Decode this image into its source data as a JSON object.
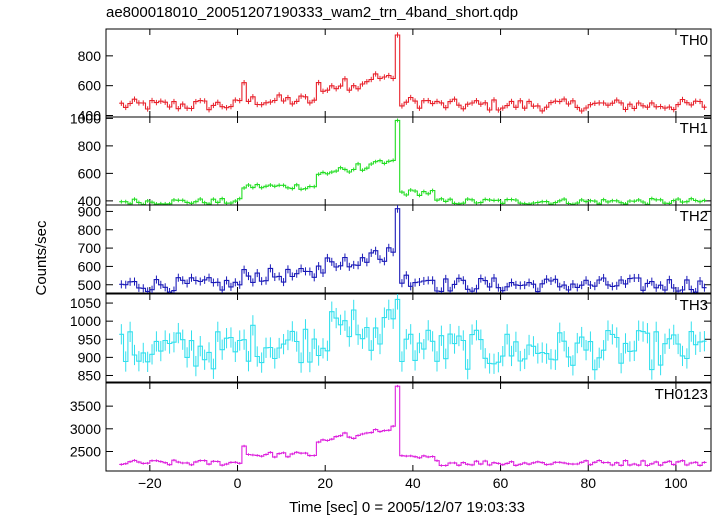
{
  "page_title": "ae800018010_20051207190333_wam2_trn_4band_short.qdp",
  "x_axis_label": "Time [sec] 0 = 2005/12/07 19:03:33",
  "y_axis_label": "Counts/sec",
  "chart_data": [
    {
      "type": "line",
      "name": "TH0",
      "color": "#e8212b",
      "xlim": [
        -30,
        108
      ],
      "ylim": [
        390,
        980
      ],
      "yticks": [
        400,
        600,
        800
      ],
      "yticklabels": [
        "400",
        "600",
        "800"
      ],
      "peaks": [
        [
          1.5,
          630
        ],
        [
          36.5,
          950
        ]
      ]
    },
    {
      "type": "line",
      "name": "TH1",
      "color": "#22dd22",
      "xlim": [
        -30,
        108
      ],
      "ylim": [
        370,
        1010
      ],
      "yticks": [
        400,
        600,
        800,
        1000
      ],
      "yticklabels": [
        "400",
        "600",
        "800",
        "1000"
      ],
      "peaks": [
        [
          1.5,
          510
        ],
        [
          36.5,
          990
        ]
      ]
    },
    {
      "type": "line",
      "name": "TH2",
      "color": "#1a1ab8",
      "xlim": [
        -30,
        108
      ],
      "ylim": [
        455,
        935
      ],
      "yticks": [
        500,
        600,
        700,
        800,
        900
      ],
      "yticklabels": [
        "500",
        "600",
        "700",
        "800",
        "900"
      ],
      "peaks": [
        [
          21.5,
          630
        ],
        [
          36.5,
          920
        ]
      ]
    },
    {
      "type": "line",
      "name": "TH3",
      "color": "#33e0ee",
      "xlim": [
        -30,
        108
      ],
      "ylim": [
        832,
        1075
      ],
      "yticks": [
        850,
        900,
        950,
        1000,
        1050
      ],
      "yticklabels": [
        "850",
        "900",
        "950",
        "1000",
        "1050"
      ],
      "peaks": [
        [
          36.5,
          1070
        ]
      ]
    },
    {
      "type": "line",
      "name": "TH0123",
      "color": "#dd22dd",
      "xlim": [
        -30,
        108
      ],
      "ylim": [
        2070,
        4010
      ],
      "yticks": [
        2500,
        3000,
        3500
      ],
      "yticklabels": [
        "2500",
        "3000",
        "3500"
      ],
      "peaks": [
        [
          1.5,
          2600
        ],
        [
          36.5,
          3950
        ]
      ]
    }
  ],
  "x_ticks": [
    -20,
    0,
    20,
    40,
    60,
    80,
    100
  ],
  "x_ticklabels": [
    "−20",
    "0",
    "20",
    "40",
    "60",
    "80",
    "100"
  ]
}
